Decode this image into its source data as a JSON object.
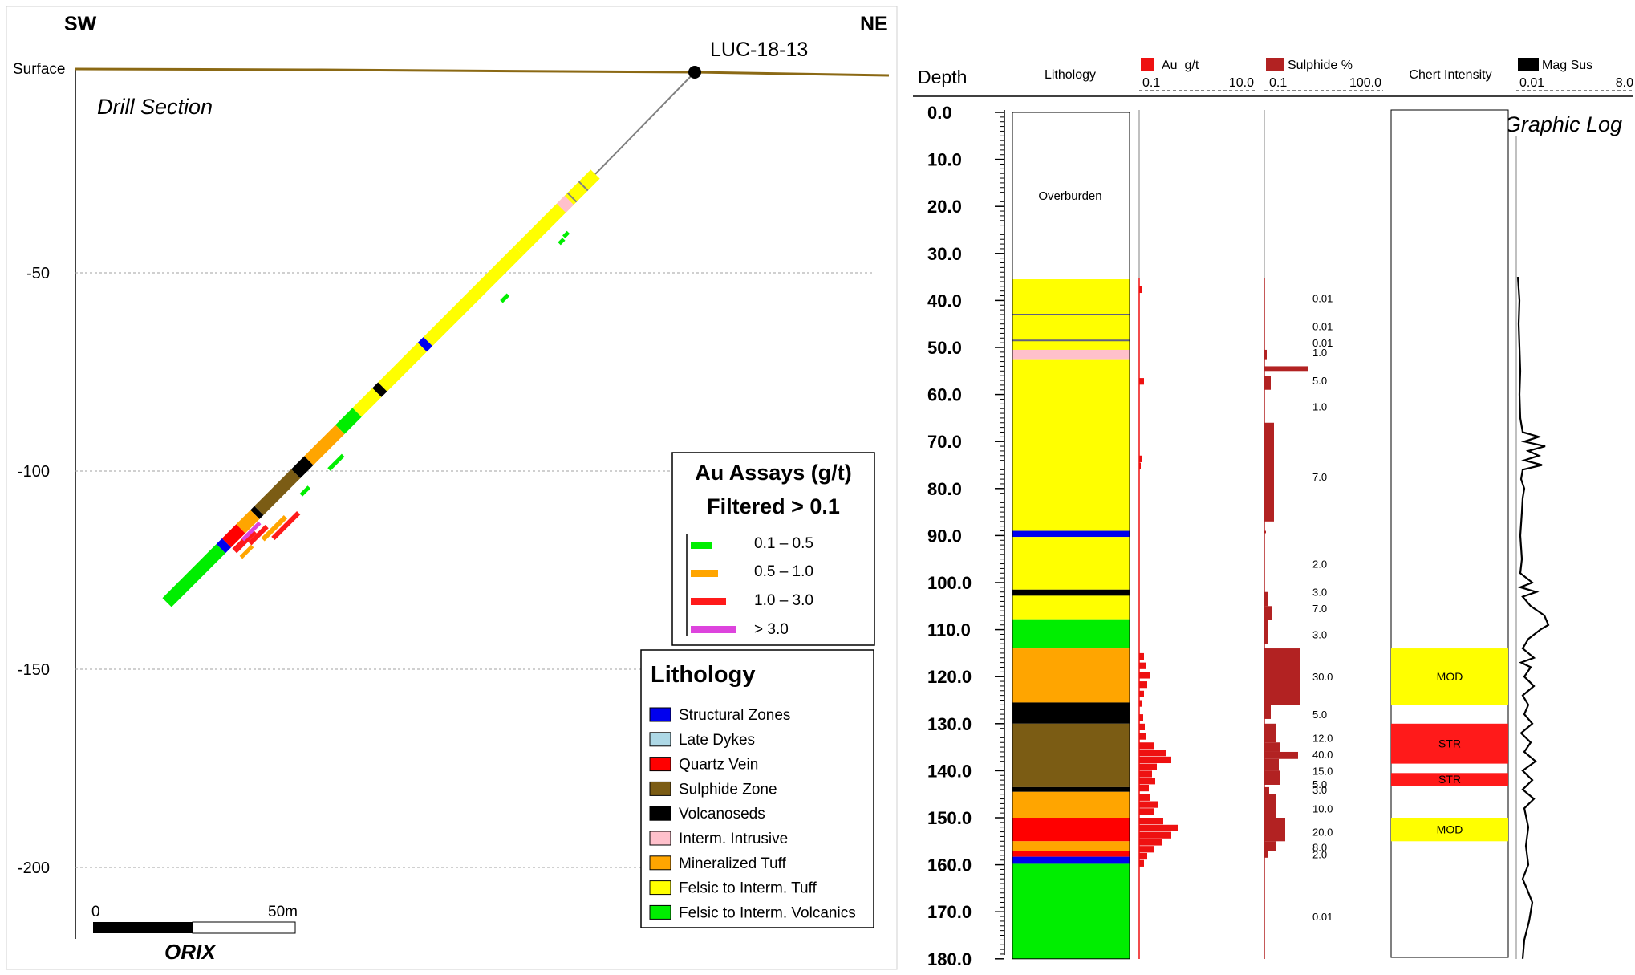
{
  "section": {
    "left_dir": "SW",
    "right_dir": "NE",
    "surface_label": "Surface",
    "title": "Drill Section",
    "hole_id": "LUC-18-13",
    "elev_ticks": [
      "-50",
      "-100",
      "-150",
      "-200"
    ],
    "scale_start": "0",
    "scale_end": "50m",
    "logo": "ORIX"
  },
  "assay_legend": {
    "title1": "Au Assays (g/t)",
    "title2": "Filtered > 0.1",
    "items": [
      {
        "label": "0.1 – 0.5",
        "color": "#00ee00"
      },
      {
        "label": "0.5 – 1.0",
        "color": "#ffa500"
      },
      {
        "label": "1.0 – 3.0",
        "color": "#ff1a1a"
      },
      {
        "label": "> 3.0",
        "color": "#dd44dd"
      }
    ]
  },
  "lithology_legend": {
    "title": "Lithology",
    "items": [
      {
        "label": "Structural Zones",
        "color": "#0000ee"
      },
      {
        "label": "Late Dykes",
        "color": "#add8e6"
      },
      {
        "label": "Quartz Vein",
        "color": "#ff0000"
      },
      {
        "label": "Sulphide Zone",
        "color": "#7b5c14"
      },
      {
        "label": "Volcanoseds",
        "color": "#000000"
      },
      {
        "label": "Interm. Intrusive",
        "color": "#ffc0cb"
      },
      {
        "label": "Mineralized Tuff",
        "color": "#ffa500"
      },
      {
        "label": "Felsic to Interm. Tuff",
        "color": "#ffff00"
      },
      {
        "label": "Felsic to Interm. Volcanics",
        "color": "#00ee00"
      }
    ]
  },
  "log": {
    "title": "Graphic Log",
    "columns": {
      "depth": "Depth",
      "lithology": "Lithology",
      "au": "Au_g/t",
      "au_min": "0.1",
      "au_max": "10.0",
      "sulphide": "Sulphide %",
      "sul_min": "0.1",
      "sul_max": "100.0",
      "chert": "Chert Intensity",
      "mag": "Mag Sus",
      "mag_min": "0.01",
      "mag_max": "8.0"
    },
    "depth_ticks": [
      "0.0",
      "10.0",
      "20.0",
      "30.0",
      "40.0",
      "50.0",
      "60.0",
      "70.0",
      "80.0",
      "90.0",
      "100.0",
      "110.0",
      "120.0",
      "130.0",
      "140.0",
      "150.0",
      "160.0",
      "170.0",
      "180.0"
    ],
    "overburden_label": "Overburden",
    "litho_intervals": [
      {
        "from": 0,
        "to": 35.5,
        "unit": "Overburden",
        "color": "#ffffff"
      },
      {
        "from": 35.5,
        "to": 51.5,
        "unit": "Felsic to Interm. Tuff",
        "color": "#ffff00"
      },
      {
        "from": 50.5,
        "to": 52.5,
        "unit": "Interm. Intrusive",
        "color": "#ffc0cb"
      },
      {
        "from": 52.5,
        "to": 89,
        "unit": "Felsic to Interm. Tuff",
        "color": "#ffff00"
      },
      {
        "from": 89,
        "to": 90.3,
        "unit": "Structural Zones",
        "color": "#0000ee"
      },
      {
        "from": 90.3,
        "to": 101.5,
        "unit": "Felsic to Interm. Tuff",
        "color": "#ffff00"
      },
      {
        "from": 101.5,
        "to": 102.8,
        "unit": "Volcanoseds",
        "color": "#000000"
      },
      {
        "from": 102.8,
        "to": 107.8,
        "unit": "Felsic to Interm. Tuff",
        "color": "#ffff00"
      },
      {
        "from": 107.8,
        "to": 114,
        "unit": "Felsic to Interm. Volcanics",
        "color": "#00ee00"
      },
      {
        "from": 114,
        "to": 125.5,
        "unit": "Mineralized Tuff",
        "color": "#ffa500"
      },
      {
        "from": 125.5,
        "to": 130,
        "unit": "Volcanoseds",
        "color": "#000000"
      },
      {
        "from": 130,
        "to": 143.5,
        "unit": "Sulphide Zone",
        "color": "#7b5c14"
      },
      {
        "from": 143.5,
        "to": 144.5,
        "unit": "Volcanoseds",
        "color": "#000000"
      },
      {
        "from": 144.5,
        "to": 150,
        "unit": "Mineralized Tuff",
        "color": "#ffa500"
      },
      {
        "from": 150,
        "to": 155,
        "unit": "Quartz Vein",
        "color": "#ff0000"
      },
      {
        "from": 155,
        "to": 157,
        "unit": "Mineralized Tuff",
        "color": "#ffa500"
      },
      {
        "from": 157,
        "to": 158.3,
        "unit": "Quartz Vein",
        "color": "#ff0000"
      },
      {
        "from": 158.3,
        "to": 159.8,
        "unit": "Structural Zones",
        "color": "#0000ee"
      },
      {
        "from": 159.8,
        "to": 180,
        "unit": "Felsic to Interm. Volcanics",
        "color": "#00ee00"
      }
    ],
    "thin_lines": [
      43,
      48.5
    ],
    "sulphide_labels": [
      {
        "depth": 39.5,
        "text": "0.01"
      },
      {
        "depth": 45.5,
        "text": "0.01"
      },
      {
        "depth": 49,
        "text": "0.01"
      },
      {
        "depth": 51,
        "text": "1.0"
      },
      {
        "depth": 57,
        "text": "5.0"
      },
      {
        "depth": 62.5,
        "text": "1.0"
      },
      {
        "depth": 77.5,
        "text": "7.0"
      },
      {
        "depth": 96,
        "text": "2.0"
      },
      {
        "depth": 102,
        "text": "3.0"
      },
      {
        "depth": 105.5,
        "text": "7.0"
      },
      {
        "depth": 111,
        "text": "3.0"
      },
      {
        "depth": 120,
        "text": "30.0"
      },
      {
        "depth": 128,
        "text": "5.0"
      },
      {
        "depth": 133,
        "text": "12.0"
      },
      {
        "depth": 136.5,
        "text": "40.0"
      },
      {
        "depth": 140,
        "text": "15.0"
      },
      {
        "depth": 142.8,
        "text": "5.0"
      },
      {
        "depth": 144,
        "text": "3.0"
      },
      {
        "depth": 148,
        "text": "10.0"
      },
      {
        "depth": 153,
        "text": "20.0"
      },
      {
        "depth": 156.2,
        "text": "8.0"
      },
      {
        "depth": 157.8,
        "text": "2.0"
      },
      {
        "depth": 171,
        "text": "0.01"
      }
    ],
    "chert_intervals": [
      {
        "from": 114,
        "to": 126,
        "label": "MOD",
        "color": "#ffff00"
      },
      {
        "from": 130,
        "to": 138.5,
        "label": "STR",
        "color": "#ff1a1a"
      },
      {
        "from": 140.5,
        "to": 143.2,
        "label": "STR",
        "color": "#ff1a1a"
      },
      {
        "from": 150,
        "to": 155,
        "label": "MOD",
        "color": "#ffff00"
      }
    ]
  },
  "colors": {
    "ground": "#8b6914",
    "sulphide_bar": "#b22222",
    "au_bar": "#ee1111",
    "grid": "#a0a0a0"
  }
}
